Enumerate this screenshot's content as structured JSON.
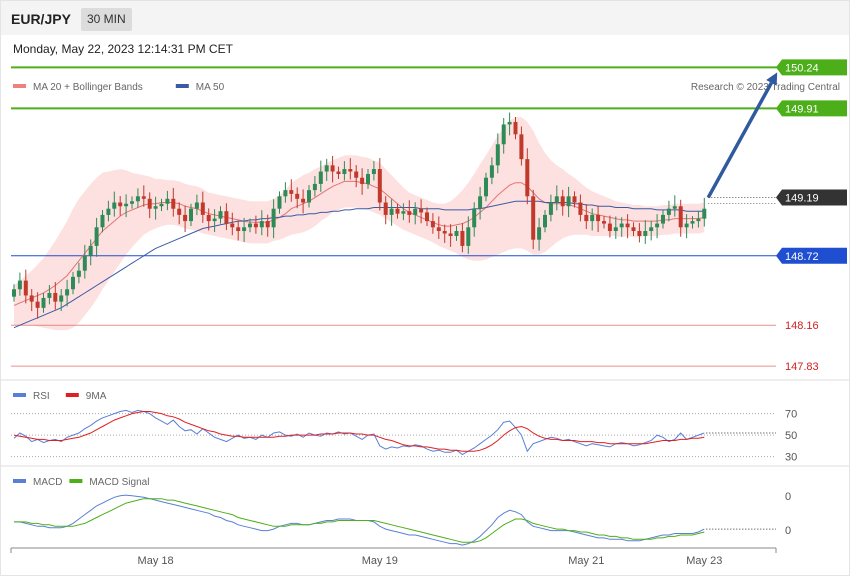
{
  "header": {
    "symbol": "EUR/JPY",
    "timeframe": "30 MIN",
    "datetime": "Monday, May 22, 2023 12:14:31 PM CET"
  },
  "colors": {
    "up": "#2e8b57",
    "down": "#c0392b",
    "ma20": "#e57373",
    "band_fill": "#fde0e0",
    "ma50": "#3b5ba5",
    "resistance": "#4caf1a",
    "support_blue": "#1f4fd0",
    "support_red": "#e06060",
    "current": "#333333",
    "arrow": "#2f5aa0",
    "rsi": "#5a7fd6",
    "rsi_ma": "#e02020",
    "macd": "#5a7fd6",
    "macd_signal": "#4caf1a"
  },
  "chart_data": [
    {
      "type": "candlestick",
      "legend": [
        {
          "label": "MA 20 + Bollinger Bands",
          "color": "#f08080"
        },
        {
          "label": "MA 50",
          "color": "#3b5ba5"
        }
      ],
      "credit": "Research © 2023 Trading Central",
      "ylim": [
        147.75,
        150.3
      ],
      "x_labels": [
        {
          "label": "May 18",
          "index": 24
        },
        {
          "label": "May 19",
          "index": 62
        },
        {
          "label": "May 21",
          "index": 97
        },
        {
          "label": "May 23",
          "index": 117
        }
      ],
      "levels": [
        {
          "label": "150.24",
          "value": 150.24,
          "role": "resistance"
        },
        {
          "label": "149.91",
          "value": 149.91,
          "role": "resistance"
        },
        {
          "label": "149.19",
          "value": 149.19,
          "role": "current"
        },
        {
          "label": "148.72",
          "value": 148.72,
          "role": "support_blue"
        },
        {
          "label": "148.16",
          "value": 148.16,
          "role": "support_red"
        },
        {
          "label": "147.83",
          "value": 147.83,
          "role": "support_red"
        }
      ],
      "arrow": {
        "from": [
          118,
          149.19
        ],
        "to": [
          128,
          150.2
        ]
      },
      "closes": [
        148.45,
        148.52,
        148.4,
        148.35,
        148.3,
        148.38,
        148.42,
        148.35,
        148.4,
        148.45,
        148.55,
        148.6,
        148.72,
        148.8,
        148.95,
        149.05,
        149.1,
        149.15,
        149.12,
        149.14,
        149.16,
        149.2,
        149.18,
        149.1,
        149.12,
        149.14,
        149.18,
        149.1,
        149.05,
        149.0,
        149.1,
        149.15,
        149.05,
        149.0,
        149.02,
        149.08,
        148.98,
        148.95,
        148.92,
        148.95,
        148.98,
        148.95,
        149.0,
        148.95,
        149.1,
        149.2,
        149.25,
        149.22,
        149.18,
        149.15,
        149.25,
        149.3,
        149.4,
        149.45,
        149.4,
        149.38,
        149.42,
        149.4,
        149.35,
        149.3,
        149.38,
        149.42,
        149.15,
        149.05,
        149.1,
        149.06,
        149.08,
        149.05,
        149.1,
        149.07,
        149.0,
        148.95,
        148.92,
        148.9,
        148.88,
        148.92,
        148.8,
        148.95,
        149.1,
        149.2,
        149.35,
        149.45,
        149.62,
        149.78,
        149.8,
        149.7,
        149.5,
        149.2,
        148.85,
        148.95,
        149.05,
        149.15,
        149.2,
        149.12,
        149.2,
        149.15,
        149.05,
        149.0,
        149.05,
        149.0,
        148.98,
        148.92,
        148.95,
        148.98,
        148.95,
        148.92,
        148.88,
        148.92,
        148.95,
        148.98,
        149.05,
        149.1,
        149.12,
        148.95,
        148.98,
        149.0,
        149.02,
        149.1
      ],
      "ma20": [
        148.32,
        148.34,
        148.36,
        148.38,
        148.4,
        148.42,
        148.45,
        148.48,
        148.52,
        148.56,
        148.62,
        148.68,
        148.74,
        148.8,
        148.86,
        148.92,
        148.96,
        149.0,
        149.04,
        149.07,
        149.09,
        149.11,
        149.13,
        149.14,
        149.14,
        149.15,
        149.15,
        149.15,
        149.14,
        149.12,
        149.11,
        149.1,
        149.08,
        149.06,
        149.05,
        149.04,
        149.03,
        149.02,
        149.01,
        149.0,
        148.99,
        148.99,
        148.99,
        148.99,
        149.01,
        149.03,
        149.06,
        149.1,
        149.12,
        149.14,
        149.16,
        149.19,
        149.22,
        149.25,
        149.28,
        149.3,
        149.32,
        149.32,
        149.32,
        149.31,
        149.3,
        149.28,
        149.26,
        149.22,
        149.18,
        149.14,
        149.1,
        149.07,
        149.05,
        149.03,
        149.01,
        148.99,
        148.97,
        148.96,
        148.96,
        148.97,
        148.98,
        149.0,
        149.03,
        149.07,
        149.11,
        149.16,
        149.21,
        149.25,
        149.29,
        149.31,
        149.31,
        149.28,
        149.23,
        149.18,
        149.15,
        149.14,
        149.14,
        149.14,
        149.13,
        149.12,
        149.1,
        149.08,
        149.06,
        149.05,
        149.04,
        149.03,
        149.02,
        149.01,
        149.01,
        149.0,
        149.0,
        149.0,
        149.0,
        149.0,
        149.01,
        149.01,
        149.02,
        149.02,
        149.02,
        149.02,
        149.02,
        149.03
      ],
      "band_width": [
        0.16,
        0.18,
        0.2,
        0.22,
        0.25,
        0.28,
        0.32,
        0.36,
        0.4,
        0.44,
        0.48,
        0.5,
        0.5,
        0.5,
        0.49,
        0.47,
        0.44,
        0.41,
        0.38,
        0.34,
        0.3,
        0.27,
        0.24,
        0.22,
        0.2,
        0.19,
        0.18,
        0.18,
        0.18,
        0.18,
        0.18,
        0.18,
        0.18,
        0.17,
        0.17,
        0.17,
        0.17,
        0.17,
        0.17,
        0.17,
        0.17,
        0.17,
        0.17,
        0.17,
        0.17,
        0.18,
        0.19,
        0.21,
        0.22,
        0.23,
        0.23,
        0.23,
        0.22,
        0.22,
        0.21,
        0.21,
        0.21,
        0.21,
        0.21,
        0.21,
        0.21,
        0.21,
        0.21,
        0.2,
        0.19,
        0.18,
        0.17,
        0.16,
        0.16,
        0.16,
        0.16,
        0.16,
        0.17,
        0.18,
        0.2,
        0.23,
        0.27,
        0.31,
        0.35,
        0.39,
        0.42,
        0.45,
        0.48,
        0.5,
        0.52,
        0.53,
        0.53,
        0.52,
        0.5,
        0.45,
        0.4,
        0.35,
        0.31,
        0.28,
        0.25,
        0.23,
        0.21,
        0.19,
        0.18,
        0.17,
        0.16,
        0.15,
        0.14,
        0.14,
        0.13,
        0.13,
        0.13,
        0.12,
        0.12,
        0.12,
        0.12,
        0.12,
        0.12,
        0.12,
        0.12,
        0.12,
        0.12,
        0.12
      ],
      "ma50": [
        148.14,
        148.16,
        148.18,
        148.2,
        148.22,
        148.24,
        148.26,
        148.28,
        148.3,
        148.33,
        148.36,
        148.39,
        148.42,
        148.45,
        148.48,
        148.51,
        148.54,
        148.57,
        148.6,
        148.63,
        148.66,
        148.69,
        148.72,
        148.75,
        148.78,
        148.8,
        148.82,
        148.84,
        148.86,
        148.88,
        148.9,
        148.92,
        148.94,
        148.95,
        148.96,
        148.97,
        148.98,
        148.99,
        149.0,
        149.0,
        149.01,
        149.01,
        149.02,
        149.02,
        149.03,
        149.03,
        149.04,
        149.04,
        149.05,
        149.05,
        149.06,
        149.06,
        149.07,
        149.07,
        149.08,
        149.08,
        149.09,
        149.09,
        149.1,
        149.1,
        149.1,
        149.11,
        149.11,
        149.11,
        149.11,
        149.11,
        149.11,
        149.11,
        149.11,
        149.1,
        149.1,
        149.1,
        149.1,
        149.09,
        149.09,
        149.09,
        149.09,
        149.09,
        149.1,
        149.1,
        149.11,
        149.12,
        149.13,
        149.14,
        149.15,
        149.16,
        149.16,
        149.16,
        149.16,
        149.16,
        149.15,
        149.15,
        149.15,
        149.15,
        149.15,
        149.14,
        149.14,
        149.13,
        149.13,
        149.12,
        149.12,
        149.12,
        149.11,
        149.11,
        149.11,
        149.1,
        149.1,
        149.1,
        149.1,
        149.09,
        149.09,
        149.09,
        149.09,
        149.09,
        149.08,
        149.08,
        149.08,
        149.08
      ]
    },
    {
      "type": "line",
      "legend": [
        {
          "label": "RSI",
          "color": "#5a7fd6"
        },
        {
          "label": "9MA",
          "color": "#e02020"
        }
      ],
      "y_ticks": [
        "70",
        "50",
        "30"
      ],
      "ylim": [
        25,
        78
      ],
      "series": [
        {
          "name": "RSI",
          "values": [
            47,
            52,
            49,
            44,
            46,
            43,
            45,
            46,
            44,
            48,
            50,
            52,
            56,
            59,
            63,
            66,
            68,
            70,
            72,
            73,
            71,
            73,
            72,
            70,
            66,
            63,
            60,
            64,
            58,
            54,
            55,
            51,
            56,
            52,
            48,
            46,
            44,
            47,
            50,
            47,
            48,
            46,
            50,
            48,
            52,
            53,
            50,
            49,
            51,
            48,
            52,
            50,
            49,
            52,
            51,
            53,
            51,
            52,
            49,
            46,
            50,
            51,
            40,
            37,
            39,
            38,
            40,
            39,
            41,
            40,
            37,
            35,
            36,
            34,
            34,
            36,
            32,
            35,
            38,
            42,
            46,
            50,
            55,
            62,
            63,
            57,
            50,
            35,
            42,
            44,
            46,
            48,
            47,
            45,
            46,
            44,
            42,
            40,
            42,
            41,
            40,
            39,
            42,
            43,
            42,
            40,
            41,
            43,
            45,
            50,
            48,
            44,
            46,
            52,
            46,
            48,
            50,
            52
          ]
        },
        {
          "name": "9MA",
          "values": [
            50,
            49,
            48,
            47,
            46,
            46,
            45,
            45,
            45,
            46,
            47,
            48,
            50,
            52,
            55,
            58,
            61,
            64,
            66,
            68,
            70,
            71,
            72,
            72,
            71,
            70,
            68,
            67,
            65,
            62,
            60,
            58,
            56,
            54,
            53,
            51,
            50,
            49,
            49,
            48,
            48,
            48,
            48,
            48,
            48,
            49,
            49,
            50,
            50,
            50,
            50,
            50,
            51,
            51,
            51,
            52,
            52,
            52,
            51,
            51,
            50,
            50,
            48,
            46,
            45,
            43,
            41,
            40,
            40,
            39,
            39,
            38,
            37,
            37,
            36,
            36,
            35,
            35,
            35,
            36,
            38,
            41,
            45,
            50,
            54,
            57,
            58,
            56,
            52,
            49,
            47,
            46,
            46,
            45,
            45,
            45,
            44,
            44,
            44,
            43,
            43,
            42,
            42,
            42,
            42,
            42,
            42,
            42,
            43,
            44,
            45,
            45,
            45,
            46,
            46,
            47,
            47,
            48
          ]
        }
      ]
    },
    {
      "type": "line",
      "legend": [
        {
          "label": "MACD",
          "color": "#5a7fd6"
        },
        {
          "label": "MACD Signal",
          "color": "#4caf1a"
        }
      ],
      "y_ticks": [
        "0",
        "0"
      ],
      "ylim": [
        -0.18,
        0.22
      ],
      "series": [
        {
          "name": "MACD",
          "values": [
            0.0,
            0.0,
            -0.01,
            -0.02,
            -0.03,
            -0.03,
            -0.04,
            -0.04,
            -0.04,
            -0.03,
            -0.01,
            0.02,
            0.05,
            0.08,
            0.11,
            0.13,
            0.15,
            0.17,
            0.18,
            0.185,
            0.18,
            0.175,
            0.17,
            0.16,
            0.15,
            0.14,
            0.13,
            0.12,
            0.11,
            0.1,
            0.09,
            0.08,
            0.07,
            0.06,
            0.04,
            0.03,
            0.01,
            0.0,
            -0.02,
            -0.03,
            -0.04,
            -0.05,
            -0.06,
            -0.06,
            -0.05,
            -0.03,
            -0.02,
            -0.01,
            -0.01,
            -0.02,
            -0.02,
            -0.01,
            0.0,
            0.01,
            0.01,
            0.02,
            0.02,
            0.02,
            0.01,
            0.01,
            0.01,
            0.0,
            -0.03,
            -0.05,
            -0.06,
            -0.07,
            -0.08,
            -0.09,
            -0.09,
            -0.1,
            -0.11,
            -0.12,
            -0.13,
            -0.14,
            -0.15,
            -0.15,
            -0.16,
            -0.15,
            -0.13,
            -0.1,
            -0.06,
            -0.02,
            0.03,
            0.06,
            0.08,
            0.07,
            0.05,
            0.0,
            -0.03,
            -0.04,
            -0.05,
            -0.06,
            -0.06,
            -0.06,
            -0.06,
            -0.07,
            -0.08,
            -0.09,
            -0.1,
            -0.11,
            -0.11,
            -0.12,
            -0.12,
            -0.12,
            -0.13,
            -0.13,
            -0.13,
            -0.12,
            -0.11,
            -0.1,
            -0.09,
            -0.09,
            -0.08,
            -0.08,
            -0.08,
            -0.08,
            -0.07,
            -0.05
          ]
        },
        {
          "name": "MACD Signal",
          "values": [
            0.0,
            0.0,
            0.0,
            -0.01,
            -0.01,
            -0.02,
            -0.02,
            -0.03,
            -0.03,
            -0.03,
            -0.03,
            -0.02,
            -0.01,
            0.01,
            0.03,
            0.05,
            0.07,
            0.09,
            0.11,
            0.13,
            0.14,
            0.15,
            0.16,
            0.16,
            0.16,
            0.16,
            0.15,
            0.15,
            0.14,
            0.13,
            0.12,
            0.11,
            0.1,
            0.09,
            0.08,
            0.07,
            0.06,
            0.05,
            0.03,
            0.02,
            0.01,
            0.0,
            -0.01,
            -0.02,
            -0.03,
            -0.03,
            -0.03,
            -0.02,
            -0.02,
            -0.02,
            -0.02,
            -0.01,
            -0.01,
            0.0,
            0.0,
            0.01,
            0.01,
            0.01,
            0.01,
            0.01,
            0.01,
            0.01,
            0.0,
            -0.01,
            -0.02,
            -0.03,
            -0.04,
            -0.05,
            -0.06,
            -0.07,
            -0.08,
            -0.09,
            -0.1,
            -0.11,
            -0.12,
            -0.13,
            -0.14,
            -0.14,
            -0.14,
            -0.13,
            -0.11,
            -0.08,
            -0.05,
            -0.02,
            0.0,
            0.02,
            0.02,
            0.01,
            -0.01,
            -0.02,
            -0.03,
            -0.04,
            -0.05,
            -0.05,
            -0.06,
            -0.06,
            -0.07,
            -0.07,
            -0.08,
            -0.09,
            -0.09,
            -0.1,
            -0.1,
            -0.11,
            -0.11,
            -0.12,
            -0.12,
            -0.12,
            -0.12,
            -0.11,
            -0.11,
            -0.1,
            -0.1,
            -0.09,
            -0.09,
            -0.09,
            -0.08,
            -0.07
          ]
        }
      ]
    }
  ]
}
